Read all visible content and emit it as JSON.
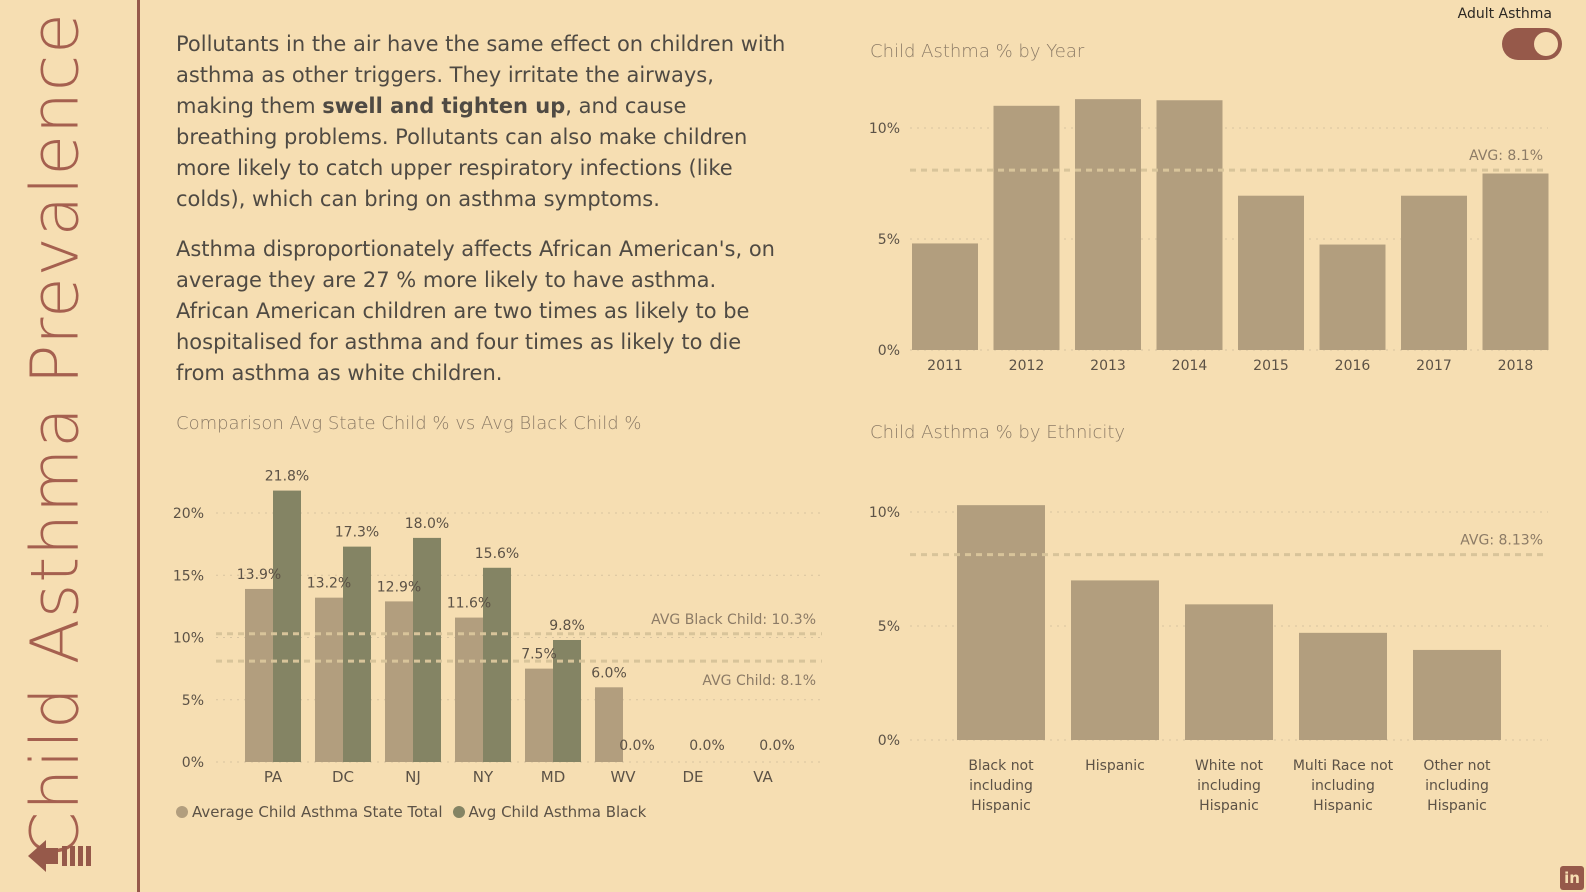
{
  "sidebar": {
    "title": "Child Asthma Prevalence"
  },
  "icons": {
    "back": "back-arrow-icon",
    "linkedin": "linkedin-icon"
  },
  "text": {
    "p1_a": "Pollutants in the air have the same effect on children with asthma as other triggers. They irritate the airways, making them ",
    "p1_bold": "swell and tighten up",
    "p1_b": ", and cause breathing problems. Pollutants can also make children more likely to catch upper respiratory infections (like colds), which can bring on asthma symptoms.",
    "p2": "Asthma disproportionately affects African American's, on average they are 27 % more likely to have asthma.  African American children are two times as likely to be hospitalised for asthma and four times as likely to die from asthma as white children."
  },
  "toggle": {
    "label": "Adult Asthma",
    "on": true
  },
  "colors": {
    "bg": "#f6deb2",
    "bar_state": "#b29e7e",
    "bar_black": "#848464",
    "accent": "#96594a",
    "grid": "#d8c4a0"
  },
  "chart_data": [
    {
      "type": "bar",
      "title": "Comparison Avg State Child % vs Avg Black Child %",
      "categories": [
        "PA",
        "DC",
        "NJ",
        "NY",
        "MD",
        "WV",
        "DE",
        "VA"
      ],
      "series": [
        {
          "name": "Average Child Asthma State Total",
          "values": [
            13.9,
            13.2,
            12.9,
            11.6,
            7.5,
            6.0,
            null,
            null
          ]
        },
        {
          "name": "Avg Child Asthma Black",
          "values": [
            21.8,
            17.3,
            18.0,
            15.6,
            9.8,
            0.0,
            0.0,
            0.0
          ]
        }
      ],
      "data_labels": {
        "state": [
          "13.9%",
          "13.2%",
          "12.9%",
          "11.6%",
          "7.5%",
          "6.0%",
          "",
          ""
        ],
        "black": [
          "21.8%",
          "17.3%",
          "18.0%",
          "15.6%",
          "9.8%",
          "0.0%",
          "0.0%",
          "0.0%"
        ]
      },
      "yticks": [
        "0%",
        "5%",
        "10%",
        "15%",
        "20%"
      ],
      "ylim": [
        0,
        22
      ],
      "ref_lines": [
        {
          "label": "AVG Black Child: 10.3%",
          "value": 10.3
        },
        {
          "label": "AVG Child: 8.1%",
          "value": 8.1
        }
      ],
      "legend": "bottom-left",
      "grid": true
    },
    {
      "type": "bar",
      "title": "Child Asthma % by Year",
      "categories": [
        "2011",
        "2012",
        "2013",
        "2014",
        "2015",
        "2016",
        "2017",
        "2018"
      ],
      "values": [
        4.8,
        11.0,
        11.3,
        11.25,
        6.95,
        4.75,
        6.95,
        7.95
      ],
      "yticks": [
        "0%",
        "5%",
        "10%"
      ],
      "ylim": [
        0,
        11.3
      ],
      "ref_lines": [
        {
          "label": "AVG: 8.1%",
          "value": 8.1
        }
      ],
      "grid": true
    },
    {
      "type": "bar",
      "title": "Child Asthma % by Ethnicity",
      "categories": [
        [
          "Black not",
          "including",
          "Hispanic"
        ],
        [
          "Hispanic"
        ],
        [
          "White not",
          "including",
          "Hispanic"
        ],
        [
          "Multi Race not",
          "including",
          "Hispanic"
        ],
        [
          "Other not",
          "including",
          "Hispanic"
        ]
      ],
      "values": [
        10.3,
        7.0,
        5.95,
        4.7,
        3.95
      ],
      "yticks": [
        "0%",
        "5%",
        "10%"
      ],
      "ylim": [
        0,
        10.3
      ],
      "ref_lines": [
        {
          "label": "AVG: 8.13%",
          "value": 8.13
        }
      ],
      "grid": true
    }
  ]
}
